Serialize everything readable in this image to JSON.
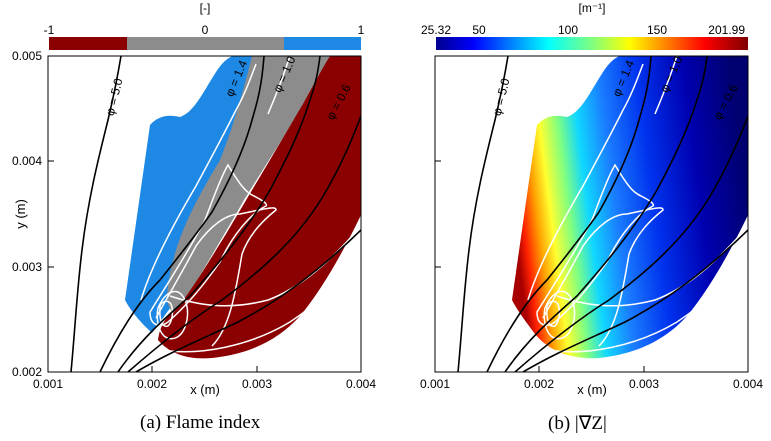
{
  "chart_data": [
    {
      "type": "contour",
      "panel": "a",
      "caption": "(a)  Flame index",
      "colorbar": {
        "unit": "[-]",
        "ticks": [
          "-1",
          "0",
          "1"
        ],
        "categories": [
          {
            "value": -1,
            "color": "#8b0000"
          },
          {
            "value": 0,
            "color": "#8c8c8c"
          },
          {
            "value": 1,
            "color": "#1e88e5"
          }
        ]
      },
      "xlabel": "x (m)",
      "ylabel": "y (m)",
      "xlim": [
        0.001,
        0.004
      ],
      "ylim": [
        0.002,
        0.005
      ],
      "xticks": [
        "0.001",
        "0.002",
        "0.003",
        "0.004"
      ],
      "yticks": [
        "0.002",
        "0.003",
        "0.004",
        "0.005"
      ],
      "isolines": [
        "φ = 5.0",
        "φ = 1.4",
        "φ = 1.0",
        "φ = 0.6"
      ]
    },
    {
      "type": "contour",
      "panel": "b",
      "caption": "(b)  |∇Z|",
      "colorbar": {
        "unit": "[m⁻¹]",
        "ticks": [
          "25.32",
          "50",
          "100",
          "150",
          "201.99"
        ],
        "range": [
          25.32,
          201.99
        ],
        "colormap": "jet"
      },
      "xlabel": "x (m)",
      "xlim": [
        0.001,
        0.004
      ],
      "ylim": [
        0.002,
        0.005
      ],
      "xticks": [
        "0.001",
        "0.002",
        "0.003",
        "0.004"
      ],
      "isolines": [
        "φ = 5.0",
        "φ = 1.4",
        "φ = 1.0",
        "φ = 0.6"
      ]
    }
  ]
}
